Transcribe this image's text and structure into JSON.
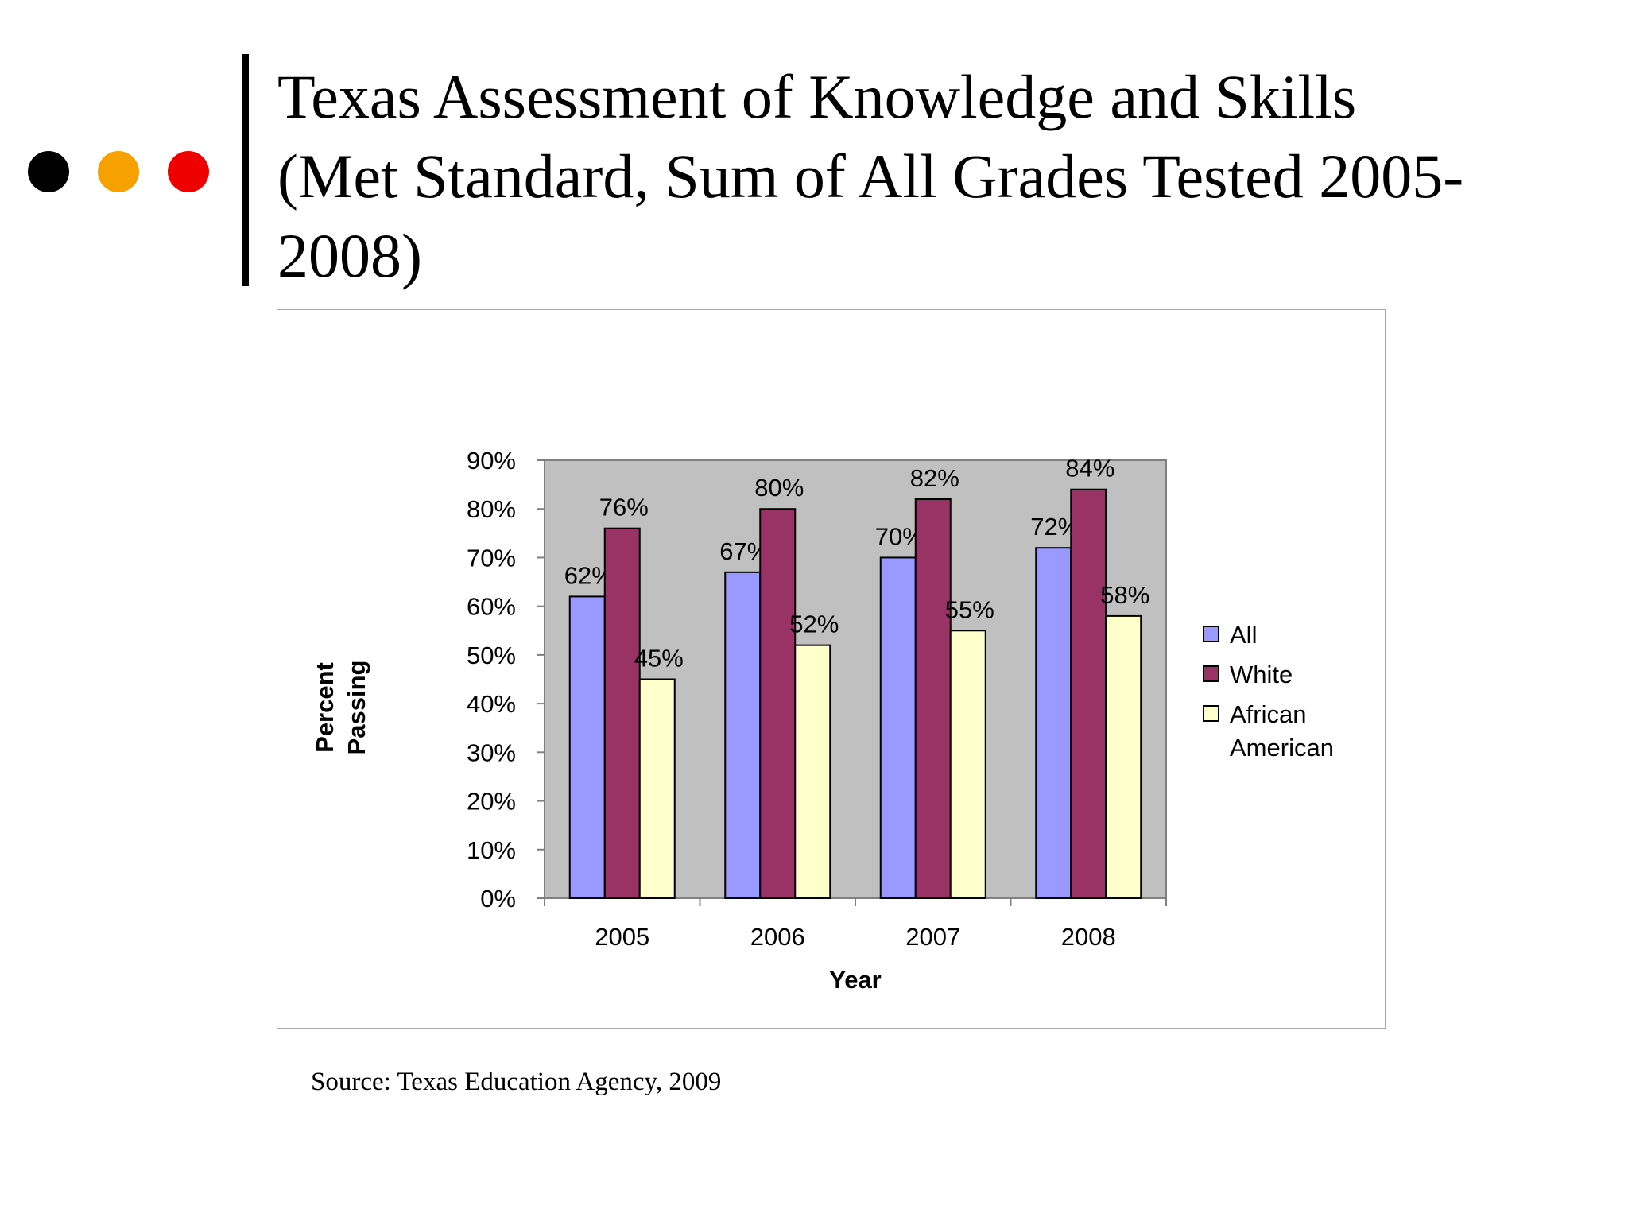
{
  "slide": {
    "title_lines": [
      "Texas Assessment of Knowledge and Skills",
      "(Met Standard, Sum of All Grades Tested 2005-",
      "2008)"
    ],
    "source": "Source: Texas Education Agency, 2009",
    "bullet_colors": [
      "#000000",
      "#f7a100",
      "#ee0000"
    ]
  },
  "chart_data": {
    "type": "bar",
    "categories": [
      "2005",
      "2006",
      "2007",
      "2008"
    ],
    "series": [
      {
        "name": "All",
        "values": [
          62,
          67,
          70,
          72
        ],
        "labels": [
          "62%",
          "67%",
          "70%",
          "72%"
        ],
        "color": "#9999ff"
      },
      {
        "name": "White",
        "values": [
          76,
          80,
          82,
          84
        ],
        "labels": [
          "76%",
          "80%",
          "82%",
          "84%"
        ],
        "color": "#993366"
      },
      {
        "name": "African American",
        "legend_lines": [
          "African",
          "American"
        ],
        "values": [
          45,
          52,
          55,
          58
        ],
        "labels": [
          "45%",
          "52%",
          "55%",
          "58%"
        ],
        "color": "#ffffcc"
      }
    ],
    "xlabel": "Year",
    "ylabel_lines": [
      "Percent",
      "Passing"
    ],
    "ylim": [
      0,
      90
    ],
    "yticks": [
      0,
      10,
      20,
      30,
      40,
      50,
      60,
      70,
      80,
      90
    ],
    "ytick_labels": [
      "0%",
      "10%",
      "20%",
      "30%",
      "40%",
      "50%",
      "60%",
      "70%",
      "80%",
      "90%"
    ],
    "grid": false,
    "plot_background": "#c0c0c0",
    "legend_position": "right"
  }
}
